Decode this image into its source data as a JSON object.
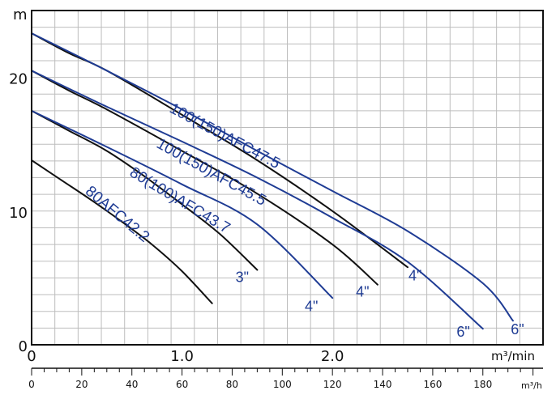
{
  "chart_data": {
    "type": "line",
    "ylabel": "m",
    "xlabel": "m³/min",
    "xlabel2": "m³/h",
    "xlim": [
      0,
      3.4
    ],
    "ylim": [
      0,
      25
    ],
    "xticks": [
      0,
      1.0,
      2.0
    ],
    "xtick_labels": [
      "0",
      "1.0",
      "2.0"
    ],
    "yticks": [
      0,
      10,
      20
    ],
    "ytick_labels": [
      "0",
      "10",
      "20"
    ],
    "x2ticks": [
      0,
      20,
      40,
      60,
      80,
      100,
      120,
      140,
      160,
      180
    ],
    "x2tick_labels": [
      "0",
      "20",
      "40",
      "60",
      "80",
      "100",
      "120",
      "140",
      "160",
      "180"
    ],
    "x2lim": [
      0,
      204
    ],
    "grid": true,
    "series": [
      {
        "name": "100(150)AFC47.5",
        "size_label": "4\"",
        "color": "#111111",
        "x": [
          0,
          0.25,
          0.5,
          1.0,
          1.5,
          2.0,
          2.5
        ],
        "y": [
          23.3,
          21.8,
          20.5,
          17.2,
          13.8,
          10.0,
          5.8
        ]
      },
      {
        "name": "100(150)AFC47.5",
        "size_label": "6\"",
        "color": "#1f3c94",
        "x": [
          0,
          0.5,
          1.0,
          1.5,
          2.0,
          2.5,
          3.0,
          3.2
        ],
        "y": [
          23.3,
          20.5,
          17.6,
          14.5,
          11.5,
          8.5,
          4.6,
          1.8
        ]
      },
      {
        "name": "100(150)AFC45.5",
        "size_label": "4\"",
        "color": "#111111",
        "x": [
          0,
          0.25,
          0.5,
          1.0,
          1.5,
          2.0,
          2.3
        ],
        "y": [
          20.5,
          19.0,
          17.6,
          14.5,
          11.3,
          7.5,
          4.5
        ]
      },
      {
        "name": "100(150)AFC45.5",
        "size_label": "6\"",
        "color": "#1f3c94",
        "x": [
          0,
          0.5,
          1.0,
          1.5,
          2.0,
          2.5,
          3.0
        ],
        "y": [
          20.5,
          17.8,
          15.2,
          12.5,
          9.5,
          6.2,
          1.2
        ]
      },
      {
        "name": "80(100)AFC43.7",
        "size_label": "3\"",
        "color": "#111111",
        "x": [
          0,
          0.25,
          0.5,
          0.75,
          1.0,
          1.25,
          1.5
        ],
        "y": [
          17.5,
          16.0,
          14.5,
          12.6,
          10.5,
          8.3,
          5.6
        ]
      },
      {
        "name": "80(100)AFC43.7",
        "size_label": "4\"",
        "color": "#1f3c94",
        "x": [
          0,
          0.5,
          1.0,
          1.5,
          2.0
        ],
        "y": [
          17.5,
          14.8,
          12.0,
          9.0,
          3.5
        ]
      },
      {
        "name": "80AFC42.2",
        "size_label": "",
        "color": "#111111",
        "x": [
          0,
          0.2,
          0.4,
          0.6,
          0.8,
          1.0,
          1.2
        ],
        "y": [
          13.8,
          12.3,
          10.8,
          9.2,
          7.5,
          5.5,
          3.1
        ]
      }
    ],
    "annotations": [
      {
        "text": "100(150)AFC47.5",
        "x": 1.27,
        "y": 15.3,
        "angle": 28,
        "color": "#1f3c94",
        "size": 19
      },
      {
        "text": "100(150)AFC45.5",
        "x": 1.18,
        "y": 12.6,
        "angle": 29,
        "color": "#1f3c94",
        "size": 19
      },
      {
        "text": "80(100)AFC43.7",
        "x": 0.97,
        "y": 10.5,
        "angle": 31,
        "color": "#1f3c94",
        "size": 19
      },
      {
        "text": "80AFC42.2",
        "x": 0.55,
        "y": 9.5,
        "angle": 40,
        "color": "#1f3c94",
        "size": 19
      },
      {
        "text": "3\"",
        "x": 1.4,
        "y": 4.7,
        "angle": 0,
        "color": "#1f3c94",
        "size": 18
      },
      {
        "text": "4\"",
        "x": 1.86,
        "y": 2.5,
        "angle": 0,
        "color": "#1f3c94",
        "size": 18
      },
      {
        "text": "4\"",
        "x": 2.2,
        "y": 3.6,
        "angle": 0,
        "color": "#1f3c94",
        "size": 18
      },
      {
        "text": "4\"",
        "x": 2.55,
        "y": 4.8,
        "angle": 0,
        "color": "#1f3c94",
        "size": 18
      },
      {
        "text": "6\"",
        "x": 2.87,
        "y": 0.6,
        "angle": 0,
        "color": "#1f3c94",
        "size": 18
      },
      {
        "text": "6\"",
        "x": 3.23,
        "y": 0.8,
        "angle": 0,
        "color": "#1f3c94",
        "size": 18
      }
    ]
  }
}
